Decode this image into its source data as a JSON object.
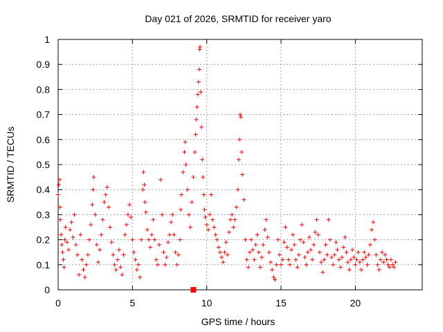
{
  "chart_data": {
    "type": "scatter",
    "title": "Day 021 of 2026, SRMTID for receiver yaro",
    "xlabel": "GPS time / hours",
    "ylabel": "SRMTID / TECUs",
    "xlim": [
      0,
      24.5
    ],
    "ylim": [
      0,
      1
    ],
    "xticks": [
      0,
      5,
      10,
      15,
      20
    ],
    "xtick_labels": [
      "0",
      "5",
      "10",
      "15",
      "20"
    ],
    "yticks": [
      0,
      0.1,
      0.2,
      0.3,
      0.4,
      0.5,
      0.6,
      0.7,
      0.8,
      0.9,
      1
    ],
    "ytick_labels": [
      "0",
      "0.1",
      "0.2",
      "0.3",
      "0.4",
      "0.5",
      "0.6",
      "0.7",
      "0.8",
      "0.9",
      "1"
    ],
    "grid": true,
    "marker": "+",
    "color": "#ff0000",
    "gap_marker": {
      "x": 9.1,
      "y": 0
    },
    "series": [
      {
        "name": "SRMTID",
        "points": [
          [
            0.0,
            0.38
          ],
          [
            0.05,
            0.42
          ],
          [
            0.1,
            0.44
          ],
          [
            0.12,
            0.33
          ],
          [
            0.15,
            0.28
          ],
          [
            0.2,
            0.22
          ],
          [
            0.25,
            0.18
          ],
          [
            0.3,
            0.15
          ],
          [
            0.35,
            0.12
          ],
          [
            0.4,
            0.09
          ],
          [
            0.45,
            0.2
          ],
          [
            0.5,
            0.25
          ],
          [
            0.6,
            0.19
          ],
          [
            0.7,
            0.16
          ],
          [
            0.8,
            0.24
          ],
          [
            0.9,
            0.27
          ],
          [
            1.0,
            0.21
          ],
          [
            1.1,
            0.3
          ],
          [
            1.2,
            0.18
          ],
          [
            1.3,
            0.14
          ],
          [
            1.4,
            0.06
          ],
          [
            1.5,
            0.22
          ],
          [
            1.6,
            0.12
          ],
          [
            1.7,
            0.08
          ],
          [
            1.8,
            0.05
          ],
          [
            1.9,
            0.1
          ],
          [
            2.0,
            0.14
          ],
          [
            2.1,
            0.2
          ],
          [
            2.2,
            0.26
          ],
          [
            2.3,
            0.34
          ],
          [
            2.35,
            0.4
          ],
          [
            2.4,
            0.45
          ],
          [
            2.5,
            0.3
          ],
          [
            2.6,
            0.18
          ],
          [
            2.7,
            0.11
          ],
          [
            2.8,
            0.16
          ],
          [
            2.9,
            0.22
          ],
          [
            3.0,
            0.28
          ],
          [
            3.1,
            0.35
          ],
          [
            3.2,
            0.38
          ],
          [
            3.3,
            0.41
          ],
          [
            3.4,
            0.33
          ],
          [
            3.5,
            0.25
          ],
          [
            3.6,
            0.19
          ],
          [
            3.7,
            0.14
          ],
          [
            3.8,
            0.1
          ],
          [
            3.9,
            0.08
          ],
          [
            4.0,
            0.12
          ],
          [
            4.1,
            0.16
          ],
          [
            4.2,
            0.09
          ],
          [
            4.3,
            0.06
          ],
          [
            4.4,
            0.14
          ],
          [
            4.5,
            0.22
          ],
          [
            4.6,
            0.26
          ],
          [
            4.7,
            0.3
          ],
          [
            4.8,
            0.34
          ],
          [
            4.9,
            0.29
          ],
          [
            5.0,
            0.2
          ],
          [
            5.1,
            0.15
          ],
          [
            5.2,
            0.12
          ],
          [
            5.3,
            0.08
          ],
          [
            5.4,
            0.1
          ],
          [
            5.5,
            0.05
          ],
          [
            5.6,
            0.2
          ],
          [
            5.7,
            0.4
          ],
          [
            5.75,
            0.47
          ],
          [
            5.8,
            0.42
          ],
          [
            5.85,
            0.35
          ],
          [
            5.9,
            0.31
          ],
          [
            6.0,
            0.24
          ],
          [
            6.1,
            0.2
          ],
          [
            6.2,
            0.17
          ],
          [
            6.3,
            0.22
          ],
          [
            6.4,
            0.28
          ],
          [
            6.5,
            0.2
          ],
          [
            6.6,
            0.12
          ],
          [
            6.7,
            0.1
          ],
          [
            6.8,
            0.18
          ],
          [
            6.9,
            0.44
          ],
          [
            7.0,
            0.3
          ],
          [
            7.1,
            0.15
          ],
          [
            7.2,
            0.1
          ],
          [
            7.3,
            0.13
          ],
          [
            7.4,
            0.19
          ],
          [
            7.5,
            0.22
          ],
          [
            7.6,
            0.27
          ],
          [
            7.7,
            0.3
          ],
          [
            7.8,
            0.22
          ],
          [
            7.9,
            0.15
          ],
          [
            8.0,
            0.1
          ],
          [
            8.1,
            0.14
          ],
          [
            8.2,
            0.2
          ],
          [
            8.25,
            0.32
          ],
          [
            8.3,
            0.38
          ],
          [
            8.4,
            0.47
          ],
          [
            8.5,
            0.55
          ],
          [
            8.55,
            0.59
          ],
          [
            8.6,
            0.5
          ],
          [
            8.7,
            0.4
          ],
          [
            8.8,
            0.3
          ],
          [
            8.9,
            0.25
          ],
          [
            9.0,
            0.35
          ],
          [
            9.1,
            0.45
          ],
          [
            9.2,
            0.55
          ],
          [
            9.25,
            0.62
          ],
          [
            9.3,
            0.68
          ],
          [
            9.35,
            0.73
          ],
          [
            9.4,
            0.78
          ],
          [
            9.45,
            0.83
          ],
          [
            9.5,
            0.88
          ],
          [
            9.52,
            0.96
          ],
          [
            9.55,
            0.97
          ],
          [
            9.6,
            0.79
          ],
          [
            9.65,
            0.65
          ],
          [
            9.7,
            0.52
          ],
          [
            9.75,
            0.45
          ],
          [
            9.8,
            0.38
          ],
          [
            9.85,
            0.32
          ],
          [
            9.9,
            0.29
          ],
          [
            10.0,
            0.26
          ],
          [
            10.1,
            0.24
          ],
          [
            10.2,
            0.3
          ],
          [
            10.3,
            0.38
          ],
          [
            10.4,
            0.28
          ],
          [
            10.5,
            0.25
          ],
          [
            10.6,
            0.22
          ],
          [
            10.7,
            0.2
          ],
          [
            10.8,
            0.17
          ],
          [
            10.9,
            0.15
          ],
          [
            11.0,
            0.13
          ],
          [
            11.1,
            0.11
          ],
          [
            11.2,
            0.15
          ],
          [
            11.3,
            0.19
          ],
          [
            11.4,
            0.14
          ],
          [
            11.5,
            0.23
          ],
          [
            11.6,
            0.28
          ],
          [
            11.7,
            0.3
          ],
          [
            11.8,
            0.25
          ],
          [
            11.9,
            0.28
          ],
          [
            12.0,
            0.33
          ],
          [
            12.1,
            0.4
          ],
          [
            12.15,
            0.52
          ],
          [
            12.2,
            0.6
          ],
          [
            12.25,
            0.7
          ],
          [
            12.3,
            0.69
          ],
          [
            12.35,
            0.55
          ],
          [
            12.4,
            0.46
          ],
          [
            12.5,
            0.36
          ],
          [
            12.6,
            0.2
          ],
          [
            12.7,
            0.12
          ],
          [
            12.8,
            0.09
          ],
          [
            12.9,
            0.15
          ],
          [
            13.0,
            0.2
          ],
          [
            13.1,
            0.16
          ],
          [
            13.2,
            0.12
          ],
          [
            13.3,
            0.18
          ],
          [
            13.4,
            0.22
          ],
          [
            13.5,
            0.15
          ],
          [
            13.6,
            0.09
          ],
          [
            13.7,
            0.13
          ],
          [
            13.8,
            0.18
          ],
          [
            13.9,
            0.24
          ],
          [
            14.0,
            0.28
          ],
          [
            14.1,
            0.21
          ],
          [
            14.2,
            0.15
          ],
          [
            14.3,
            0.11
          ],
          [
            14.4,
            0.08
          ],
          [
            14.5,
            0.05
          ],
          [
            14.6,
            0.04
          ],
          [
            14.7,
            0.1
          ],
          [
            14.8,
            0.2
          ],
          [
            14.9,
            0.14
          ],
          [
            15.0,
            0.1
          ],
          [
            15.1,
            0.12
          ],
          [
            15.2,
            0.19
          ],
          [
            15.3,
            0.25
          ],
          [
            15.4,
            0.17
          ],
          [
            15.5,
            0.12
          ],
          [
            15.6,
            0.1
          ],
          [
            15.7,
            0.16
          ],
          [
            15.8,
            0.22
          ],
          [
            15.9,
            0.18
          ],
          [
            16.0,
            0.12
          ],
          [
            16.1,
            0.09
          ],
          [
            16.2,
            0.14
          ],
          [
            16.3,
            0.2
          ],
          [
            16.4,
            0.26
          ],
          [
            16.5,
            0.19
          ],
          [
            16.6,
            0.13
          ],
          [
            16.7,
            0.1
          ],
          [
            16.8,
            0.15
          ],
          [
            16.9,
            0.21
          ],
          [
            17.0,
            0.16
          ],
          [
            17.1,
            0.12
          ],
          [
            17.2,
            0.18
          ],
          [
            17.3,
            0.23
          ],
          [
            17.4,
            0.28
          ],
          [
            17.5,
            0.22
          ],
          [
            17.6,
            0.15
          ],
          [
            17.7,
            0.11
          ],
          [
            17.8,
            0.07
          ],
          [
            17.9,
            0.12
          ],
          [
            18.0,
            0.18
          ],
          [
            18.1,
            0.14
          ],
          [
            18.2,
            0.28
          ],
          [
            18.3,
            0.2
          ],
          [
            18.4,
            0.13
          ],
          [
            18.5,
            0.1
          ],
          [
            18.6,
            0.14
          ],
          [
            18.7,
            0.19
          ],
          [
            18.8,
            0.16
          ],
          [
            18.9,
            0.12
          ],
          [
            19.0,
            0.09
          ],
          [
            19.1,
            0.13
          ],
          [
            19.2,
            0.17
          ],
          [
            19.3,
            0.21
          ],
          [
            19.4,
            0.15
          ],
          [
            19.5,
            0.11
          ],
          [
            19.6,
            0.08
          ],
          [
            19.7,
            0.12
          ],
          [
            19.8,
            0.16
          ],
          [
            19.9,
            0.13
          ],
          [
            20.0,
            0.1
          ],
          [
            20.1,
            0.12
          ],
          [
            20.2,
            0.15
          ],
          [
            20.3,
            0.11
          ],
          [
            20.4,
            0.08
          ],
          [
            20.5,
            0.12
          ],
          [
            20.6,
            0.15
          ],
          [
            20.7,
            0.13
          ],
          [
            20.8,
            0.1
          ],
          [
            20.9,
            0.14
          ],
          [
            21.0,
            0.18
          ],
          [
            21.1,
            0.24
          ],
          [
            21.2,
            0.27
          ],
          [
            21.3,
            0.2
          ],
          [
            21.4,
            0.14
          ],
          [
            21.5,
            0.1
          ],
          [
            21.6,
            0.08
          ],
          [
            21.7,
            0.12
          ],
          [
            21.8,
            0.15
          ],
          [
            21.9,
            0.11
          ],
          [
            22.0,
            0.14
          ],
          [
            22.1,
            0.12
          ],
          [
            22.2,
            0.1
          ],
          [
            22.3,
            0.09
          ],
          [
            22.4,
            0.12
          ],
          [
            22.5,
            0.1
          ],
          [
            22.6,
            0.09
          ],
          [
            22.7,
            0.11
          ]
        ]
      }
    ]
  }
}
